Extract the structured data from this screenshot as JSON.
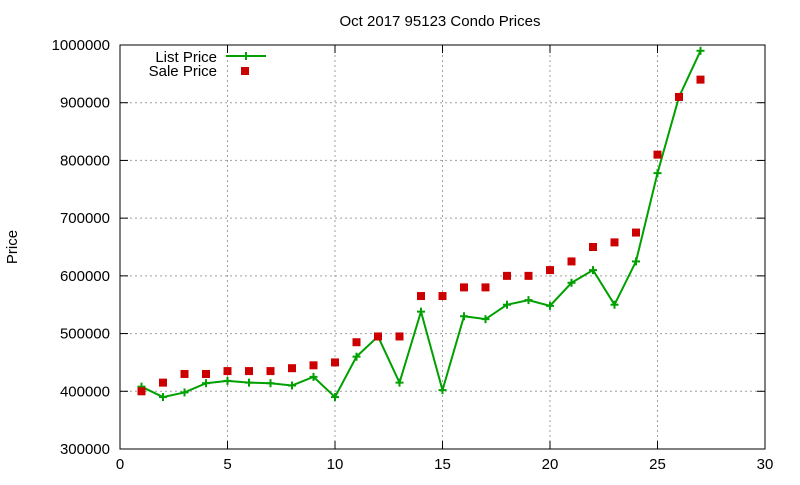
{
  "chart_data": {
    "type": "line",
    "title": "Oct 2017 95123 Condo Prices",
    "xlabel": "",
    "ylabel": "Price",
    "xlim": [
      0,
      30
    ],
    "ylim": [
      300000,
      1000000
    ],
    "x_ticks": [
      0,
      5,
      10,
      15,
      20,
      25,
      30
    ],
    "y_ticks": [
      300000,
      400000,
      500000,
      600000,
      700000,
      800000,
      900000,
      1000000
    ],
    "x_tick_labels": [
      "0",
      "5",
      "10",
      "15",
      "20",
      "25",
      "30"
    ],
    "y_tick_labels": [
      "300000",
      "400000",
      "500000",
      "600000",
      "700000",
      "800000",
      "900000",
      "1000000"
    ],
    "grid": true,
    "legend_position": "top-left",
    "series": [
      {
        "name": "List Price",
        "style": "line-with-plus-markers",
        "color": "#00a000",
        "x": [
          1,
          2,
          3,
          4,
          5,
          6,
          7,
          8,
          9,
          10,
          11,
          12,
          13,
          14,
          15,
          16,
          17,
          18,
          19,
          20,
          21,
          22,
          23,
          24,
          25,
          26,
          27
        ],
        "values": [
          408000,
          390000,
          398000,
          414000,
          418000,
          415000,
          414000,
          410000,
          425000,
          390000,
          460000,
          495000,
          415000,
          538000,
          402000,
          530000,
          525000,
          550000,
          558000,
          548000,
          588000,
          610000,
          550000,
          625000,
          778000,
          910000,
          990000
        ]
      },
      {
        "name": "Sale Price",
        "style": "square-markers",
        "color": "#cc0000",
        "x": [
          1,
          2,
          3,
          4,
          5,
          6,
          7,
          8,
          9,
          10,
          11,
          12,
          13,
          14,
          15,
          16,
          17,
          18,
          19,
          20,
          21,
          22,
          23,
          24,
          25,
          26,
          27
        ],
        "values": [
          400000,
          415000,
          430000,
          430000,
          435000,
          435000,
          435000,
          440000,
          445000,
          450000,
          485000,
          495000,
          495000,
          565000,
          565000,
          580000,
          580000,
          600000,
          600000,
          610000,
          625000,
          650000,
          658000,
          675000,
          810000,
          910000,
          940000
        ]
      }
    ]
  }
}
